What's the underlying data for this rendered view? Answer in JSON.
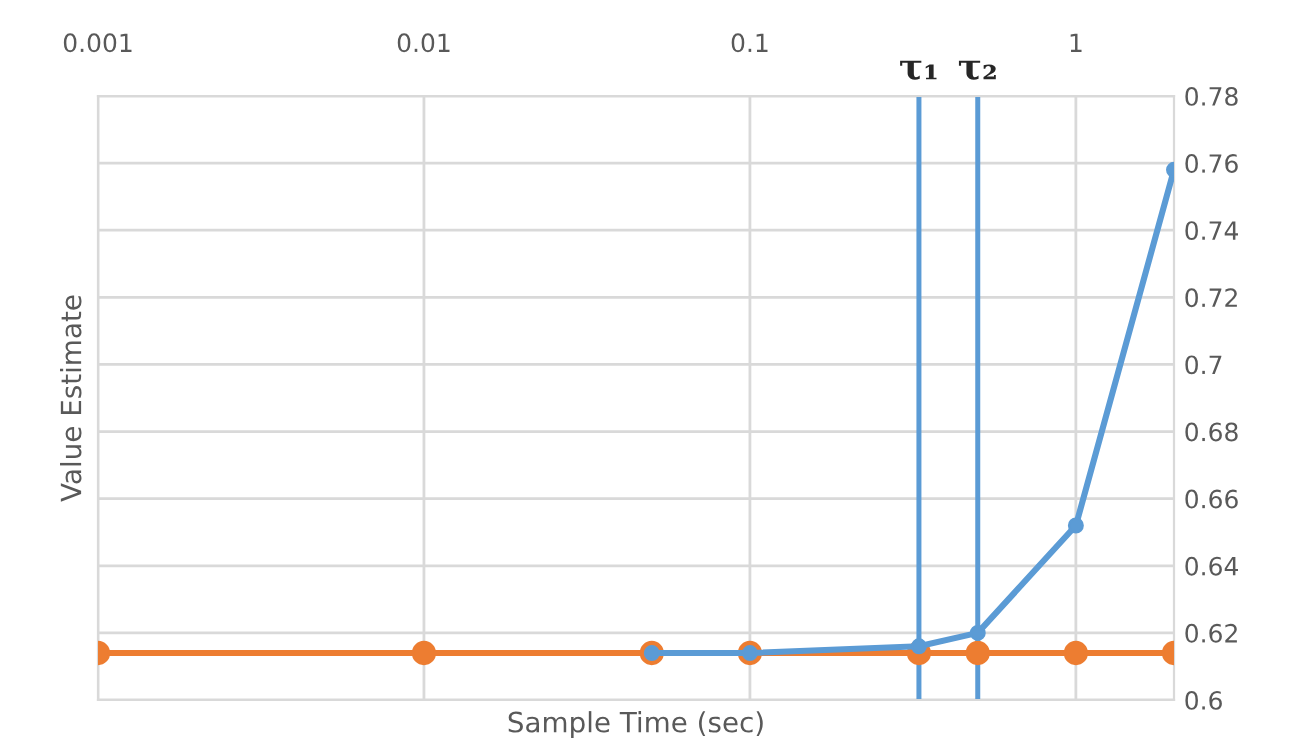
{
  "chart_data": {
    "type": "line",
    "xlabel": "Sample Time (sec)",
    "ylabel": "Value Estimate",
    "log": "x",
    "xlim": [
      0.001,
      2
    ],
    "xticks": [
      0.001,
      0.01,
      0.1,
      1
    ],
    "ylim": [
      0.6,
      0.78
    ],
    "yticks": [
      0.6,
      0.62,
      0.64,
      0.66,
      0.68,
      0.7,
      0.72,
      0.74,
      0.76,
      0.78
    ],
    "grid": true,
    "marker": "circle",
    "line_style": "solid",
    "series": [
      {
        "color": "#5b9bd5",
        "x": [
          0.05,
          0.1,
          0.33,
          0.5,
          1,
          2
        ],
        "values": [
          0.614,
          0.614,
          0.616,
          0.62,
          0.652,
          0.758
        ]
      },
      {
        "color": "#ed7d31",
        "x": [
          0.001,
          0.01,
          0.05,
          0.1,
          0.33,
          0.5,
          1,
          2
        ],
        "values": [
          0.614,
          0.614,
          0.614,
          0.614,
          0.614,
          0.614,
          0.614,
          0.614
        ]
      }
    ],
    "ref_lines": [
      {
        "axis": "x",
        "value": 0.33,
        "label": "τ₁",
        "color": "#5b9bd5"
      },
      {
        "axis": "x",
        "value": 0.5,
        "label": "τ₂",
        "color": "#5b9bd5"
      }
    ]
  }
}
